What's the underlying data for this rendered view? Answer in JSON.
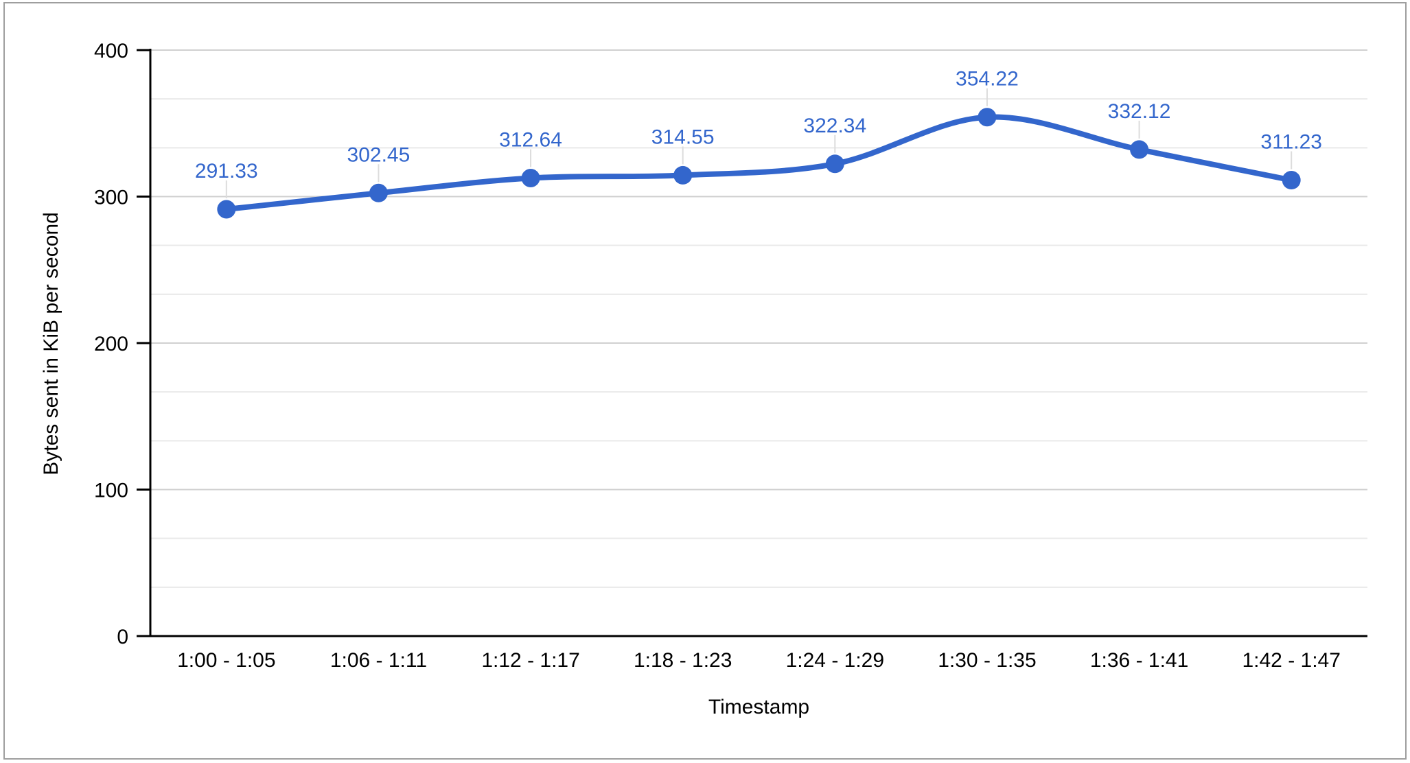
{
  "chart_data": {
    "type": "line",
    "smooth": true,
    "title": "",
    "xlabel": "Timestamp",
    "ylabel": "Bytes sent in KiB per second",
    "categories": [
      "1:00 - 1:05",
      "1:06 - 1:11",
      "1:12 - 1:17",
      "1:18 - 1:23",
      "1:24 - 1:29",
      "1:30 - 1:35",
      "1:36 - 1:41",
      "1:42 - 1:47"
    ],
    "series": [
      {
        "name": "Bytes sent in KiB per second",
        "values": [
          291.33,
          302.45,
          312.64,
          314.55,
          322.34,
          354.22,
          332.12,
          311.23
        ],
        "point_labels": [
          "291.33",
          "302.45",
          "312.64",
          "314.55",
          "322.34",
          "354.22",
          "332.12",
          "311.23"
        ]
      }
    ],
    "ylim": [
      0,
      400
    ],
    "yticks": [
      0,
      100,
      200,
      300,
      400
    ],
    "minor_gridlines_between_majors": 2,
    "grid": true,
    "legend_position": "none",
    "colors": {
      "series": "#3366cc",
      "data_label": "#3366cc",
      "axis_text": "#000000",
      "axis_line": "#000000",
      "major_gridline": "#d0d0d0",
      "minor_gridline": "#e9e9e9",
      "label_leader": "#dcdcdc",
      "frame_border": "#9e9e9e",
      "background": "#ffffff"
    }
  }
}
